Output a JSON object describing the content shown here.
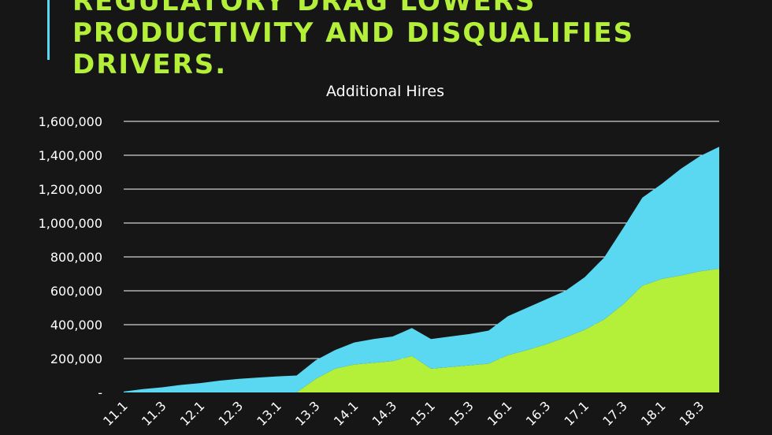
{
  "headline": {
    "lines": [
      "REGULATORY DRAG LOWERS",
      "PRODUCTIVITY AND DISQUALIFIES",
      "DRIVERS."
    ]
  },
  "colors": {
    "background": "#161616",
    "headline": "#b4f03a",
    "accent_bar": "#5ad8f2"
  },
  "chart_data": {
    "type": "area",
    "title": "Additional Hires",
    "xlabel": "",
    "ylabel": "",
    "ylim": [
      0,
      1600000
    ],
    "yticks": [
      "-",
      "200,000",
      "400,000",
      "600,000",
      "800,000",
      "1,000,000",
      "1,200,000",
      "1,400,000",
      "1,600,000"
    ],
    "grid": true,
    "legend": "none",
    "stacked": true,
    "x": [
      "2011.1",
      "2011.2",
      "2011.3",
      "2011.4",
      "2012.1",
      "2012.2",
      "2012.3",
      "2012.4",
      "2013.1",
      "2013.2",
      "2013.3",
      "2013.4",
      "2014.1",
      "2014.2",
      "2014.3",
      "2014.4",
      "2015.1",
      "2015.2",
      "2015.3",
      "2015.4",
      "2016.1",
      "2016.2",
      "2016.3",
      "2016.4",
      "2017.1",
      "2017.2",
      "2017.3",
      "2017.4",
      "2018.1",
      "2018.2",
      "2018.3",
      "2018.4"
    ],
    "x_tick_labels": [
      "11.1",
      "11.3",
      "12.1",
      "12.3",
      "13.1",
      "13.3",
      "14.1",
      "14.3",
      "15.1",
      "15.3",
      "16.1",
      "16.3",
      "17.1",
      "17.3",
      "18.1",
      "18.3"
    ],
    "series": [
      {
        "color": "#b4f03a",
        "values": [
          0,
          0,
          0,
          0,
          0,
          0,
          0,
          0,
          0,
          0,
          80000,
          140000,
          165000,
          175000,
          185000,
          215000,
          140000,
          150000,
          160000,
          170000,
          220000,
          250000,
          285000,
          325000,
          370000,
          430000,
          520000,
          630000,
          670000,
          690000,
          715000,
          730000
        ]
      },
      {
        "color": "#5ad8f2",
        "values": [
          5000,
          20000,
          30000,
          45000,
          55000,
          70000,
          80000,
          88000,
          95000,
          100000,
          110000,
          110000,
          130000,
          140000,
          145000,
          165000,
          175000,
          180000,
          185000,
          195000,
          230000,
          250000,
          265000,
          275000,
          310000,
          365000,
          450000,
          520000,
          560000,
          630000,
          680000,
          720000
        ]
      }
    ]
  }
}
